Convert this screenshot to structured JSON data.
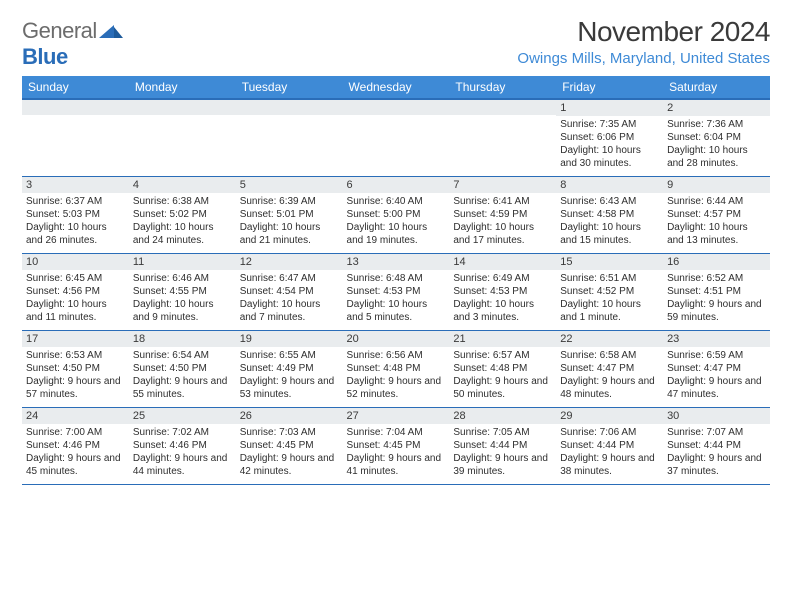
{
  "logo": {
    "part1": "General",
    "part2": "Blue"
  },
  "title": "November 2024",
  "location": "Owings Mills, Maryland, United States",
  "dayHeaders": [
    "Sunday",
    "Monday",
    "Tuesday",
    "Wednesday",
    "Thursday",
    "Friday",
    "Saturday"
  ],
  "colors": {
    "headerBg": "#3e8ad6",
    "accent": "#2a6db8",
    "grayBar": "#e9ecee",
    "text": "#2e2e2e",
    "locText": "#3e8ad6"
  },
  "typography": {
    "title_fontsize": 28,
    "location_fontsize": 15,
    "header_fontsize": 12,
    "daynum_fontsize": 11,
    "info_fontsize": 10
  },
  "weeks": [
    [
      null,
      null,
      null,
      null,
      null,
      {
        "n": "1",
        "sr": "7:35 AM",
        "ss": "6:06 PM",
        "dl": "10 hours and 30 minutes."
      },
      {
        "n": "2",
        "sr": "7:36 AM",
        "ss": "6:04 PM",
        "dl": "10 hours and 28 minutes."
      }
    ],
    [
      {
        "n": "3",
        "sr": "6:37 AM",
        "ss": "5:03 PM",
        "dl": "10 hours and 26 minutes."
      },
      {
        "n": "4",
        "sr": "6:38 AM",
        "ss": "5:02 PM",
        "dl": "10 hours and 24 minutes."
      },
      {
        "n": "5",
        "sr": "6:39 AM",
        "ss": "5:01 PM",
        "dl": "10 hours and 21 minutes."
      },
      {
        "n": "6",
        "sr": "6:40 AM",
        "ss": "5:00 PM",
        "dl": "10 hours and 19 minutes."
      },
      {
        "n": "7",
        "sr": "6:41 AM",
        "ss": "4:59 PM",
        "dl": "10 hours and 17 minutes."
      },
      {
        "n": "8",
        "sr": "6:43 AM",
        "ss": "4:58 PM",
        "dl": "10 hours and 15 minutes."
      },
      {
        "n": "9",
        "sr": "6:44 AM",
        "ss": "4:57 PM",
        "dl": "10 hours and 13 minutes."
      }
    ],
    [
      {
        "n": "10",
        "sr": "6:45 AM",
        "ss": "4:56 PM",
        "dl": "10 hours and 11 minutes."
      },
      {
        "n": "11",
        "sr": "6:46 AM",
        "ss": "4:55 PM",
        "dl": "10 hours and 9 minutes."
      },
      {
        "n": "12",
        "sr": "6:47 AM",
        "ss": "4:54 PM",
        "dl": "10 hours and 7 minutes."
      },
      {
        "n": "13",
        "sr": "6:48 AM",
        "ss": "4:53 PM",
        "dl": "10 hours and 5 minutes."
      },
      {
        "n": "14",
        "sr": "6:49 AM",
        "ss": "4:53 PM",
        "dl": "10 hours and 3 minutes."
      },
      {
        "n": "15",
        "sr": "6:51 AM",
        "ss": "4:52 PM",
        "dl": "10 hours and 1 minute."
      },
      {
        "n": "16",
        "sr": "6:52 AM",
        "ss": "4:51 PM",
        "dl": "9 hours and 59 minutes."
      }
    ],
    [
      {
        "n": "17",
        "sr": "6:53 AM",
        "ss": "4:50 PM",
        "dl": "9 hours and 57 minutes."
      },
      {
        "n": "18",
        "sr": "6:54 AM",
        "ss": "4:50 PM",
        "dl": "9 hours and 55 minutes."
      },
      {
        "n": "19",
        "sr": "6:55 AM",
        "ss": "4:49 PM",
        "dl": "9 hours and 53 minutes."
      },
      {
        "n": "20",
        "sr": "6:56 AM",
        "ss": "4:48 PM",
        "dl": "9 hours and 52 minutes."
      },
      {
        "n": "21",
        "sr": "6:57 AM",
        "ss": "4:48 PM",
        "dl": "9 hours and 50 minutes."
      },
      {
        "n": "22",
        "sr": "6:58 AM",
        "ss": "4:47 PM",
        "dl": "9 hours and 48 minutes."
      },
      {
        "n": "23",
        "sr": "6:59 AM",
        "ss": "4:47 PM",
        "dl": "9 hours and 47 minutes."
      }
    ],
    [
      {
        "n": "24",
        "sr": "7:00 AM",
        "ss": "4:46 PM",
        "dl": "9 hours and 45 minutes."
      },
      {
        "n": "25",
        "sr": "7:02 AM",
        "ss": "4:46 PM",
        "dl": "9 hours and 44 minutes."
      },
      {
        "n": "26",
        "sr": "7:03 AM",
        "ss": "4:45 PM",
        "dl": "9 hours and 42 minutes."
      },
      {
        "n": "27",
        "sr": "7:04 AM",
        "ss": "4:45 PM",
        "dl": "9 hours and 41 minutes."
      },
      {
        "n": "28",
        "sr": "7:05 AM",
        "ss": "4:44 PM",
        "dl": "9 hours and 39 minutes."
      },
      {
        "n": "29",
        "sr": "7:06 AM",
        "ss": "4:44 PM",
        "dl": "9 hours and 38 minutes."
      },
      {
        "n": "30",
        "sr": "7:07 AM",
        "ss": "4:44 PM",
        "dl": "9 hours and 37 minutes."
      }
    ]
  ],
  "labels": {
    "sunrise": "Sunrise:",
    "sunset": "Sunset:",
    "daylight": "Daylight:"
  }
}
